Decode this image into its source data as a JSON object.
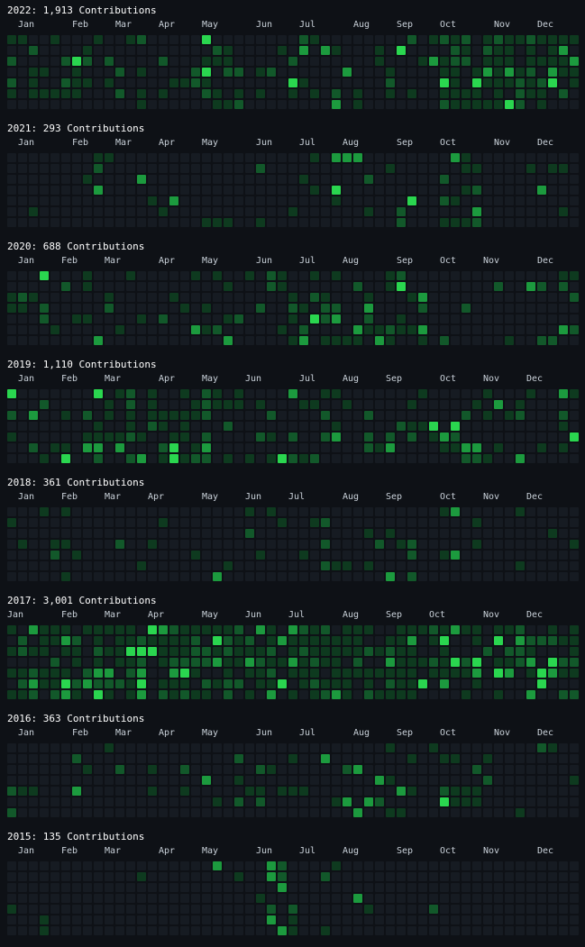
{
  "colors": {
    "background": "#0e1116",
    "empty": "#161b22",
    "level1": "#0e3a1f",
    "level2": "#12582a",
    "level3": "#1c9a3e",
    "level4": "#2ad64f"
  },
  "years": [
    {
      "title": "2022: 1,913 Contributions",
      "months": [
        {
          "label": "Jan",
          "week": 1
        },
        {
          "label": "Feb",
          "week": 6
        },
        {
          "label": "Mar",
          "week": 10
        },
        {
          "label": "Apr",
          "week": 14
        },
        {
          "label": "May",
          "week": 18
        },
        {
          "label": "Jun",
          "week": 23
        },
        {
          "label": "Jul",
          "week": 27
        },
        {
          "label": "Aug",
          "week": 32
        },
        {
          "label": "Sep",
          "week": 36
        },
        {
          "label": "Oct",
          "week": 40
        },
        {
          "label": "Nov",
          "week": 45
        },
        {
          "label": "Dec",
          "week": 49
        }
      ],
      "density": 0.3,
      "hotStart": 40,
      "hotEnd": 52,
      "hotBoost": 0.55,
      "seed": 11
    },
    {
      "title": "2021: 293 Contributions",
      "months": [
        {
          "label": "Jan",
          "week": 1
        },
        {
          "label": "Feb",
          "week": 6
        },
        {
          "label": "Mar",
          "week": 10
        },
        {
          "label": "Apr",
          "week": 14
        },
        {
          "label": "May",
          "week": 18
        },
        {
          "label": "Jun",
          "week": 23
        },
        {
          "label": "Jul",
          "week": 27
        },
        {
          "label": "Aug",
          "week": 31
        },
        {
          "label": "Sep",
          "week": 36
        },
        {
          "label": "Oct",
          "week": 40
        },
        {
          "label": "Nov",
          "week": 45
        },
        {
          "label": "Dec",
          "week": 49
        }
      ],
      "density": 0.07,
      "hotStart": 40,
      "hotEnd": 43,
      "hotBoost": 0.45,
      "seed": 23
    },
    {
      "title": "2020: 688 Contributions",
      "months": [
        {
          "label": "Jan",
          "week": 1
        },
        {
          "label": "Feb",
          "week": 5
        },
        {
          "label": "Mar",
          "week": 9
        },
        {
          "label": "Apr",
          "week": 14
        },
        {
          "label": "May",
          "week": 18
        },
        {
          "label": "Jun",
          "week": 23
        },
        {
          "label": "Jul",
          "week": 27
        },
        {
          "label": "Aug",
          "week": 31
        },
        {
          "label": "Sep",
          "week": 36
        },
        {
          "label": "Oct",
          "week": 40
        },
        {
          "label": "Nov",
          "week": 44
        },
        {
          "label": "Dec",
          "week": 49
        }
      ],
      "density": 0.18,
      "hotStart": 23,
      "hotEnd": 38,
      "hotBoost": 0.25,
      "seed": 37
    },
    {
      "title": "2019: 1,110 Contributions",
      "months": [
        {
          "label": "Jan",
          "week": 1
        },
        {
          "label": "Feb",
          "week": 5
        },
        {
          "label": "Mar",
          "week": 9
        },
        {
          "label": "Apr",
          "week": 14
        },
        {
          "label": "May",
          "week": 18
        },
        {
          "label": "Jun",
          "week": 22
        },
        {
          "label": "Jul",
          "week": 27
        },
        {
          "label": "Aug",
          "week": 31
        },
        {
          "label": "Sep",
          "week": 35
        },
        {
          "label": "Oct",
          "week": 40
        },
        {
          "label": "Nov",
          "week": 44
        },
        {
          "label": "Dec",
          "week": 48
        }
      ],
      "density": 0.26,
      "hotStart": 5,
      "hotEnd": 22,
      "hotBoost": 0.2,
      "seed": 41
    },
    {
      "title": "2018: 361 Contributions",
      "months": [
        {
          "label": "Jan",
          "week": 1
        },
        {
          "label": "Feb",
          "week": 5
        },
        {
          "label": "Mar",
          "week": 9
        },
        {
          "label": "Apr",
          "week": 13
        },
        {
          "label": "May",
          "week": 18
        },
        {
          "label": "Jun",
          "week": 22
        },
        {
          "label": "Jul",
          "week": 26
        },
        {
          "label": "Aug",
          "week": 31
        },
        {
          "label": "Sep",
          "week": 35
        },
        {
          "label": "Oct",
          "week": 40
        },
        {
          "label": "Nov",
          "week": 44
        },
        {
          "label": "Dec",
          "week": 48
        }
      ],
      "density": 0.1,
      "hotStart": 0,
      "hotEnd": 0,
      "hotBoost": 0,
      "seed": 53
    },
    {
      "title": "2017: 3,001 Contributions",
      "months": [
        {
          "label": "Jan",
          "week": 0
        },
        {
          "label": "Feb",
          "week": 5
        },
        {
          "label": "Mar",
          "week": 9
        },
        {
          "label": "Apr",
          "week": 13
        },
        {
          "label": "May",
          "week": 18
        },
        {
          "label": "Jun",
          "week": 22
        },
        {
          "label": "Jul",
          "week": 26
        },
        {
          "label": "Aug",
          "week": 31
        },
        {
          "label": "Sep",
          "week": 35
        },
        {
          "label": "Oct",
          "week": 39
        },
        {
          "label": "Nov",
          "week": 44
        },
        {
          "label": "Dec",
          "week": 48
        }
      ],
      "density": 0.55,
      "hotStart": 6,
      "hotEnd": 37,
      "hotBoost": 0.25,
      "seed": 67
    },
    {
      "title": "2016: 363 Contributions",
      "months": [
        {
          "label": "Jan",
          "week": 1
        },
        {
          "label": "Feb",
          "week": 6
        },
        {
          "label": "Mar",
          "week": 10
        },
        {
          "label": "Apr",
          "week": 14
        },
        {
          "label": "May",
          "week": 18
        },
        {
          "label": "Jun",
          "week": 23
        },
        {
          "label": "Jul",
          "week": 27
        },
        {
          "label": "Aug",
          "week": 32
        },
        {
          "label": "Sep",
          "week": 36
        },
        {
          "label": "Oct",
          "week": 40
        },
        {
          "label": "Nov",
          "week": 45
        },
        {
          "label": "Dec",
          "week": 49
        }
      ],
      "density": 0.09,
      "hotStart": 20,
      "hotEnd": 44,
      "hotBoost": 0.12,
      "seed": 79
    },
    {
      "title": "2015: 135 Contributions",
      "months": [
        {
          "label": "Jan",
          "week": 1
        },
        {
          "label": "Feb",
          "week": 5
        },
        {
          "label": "Mar",
          "week": 9
        },
        {
          "label": "Apr",
          "week": 14
        },
        {
          "label": "May",
          "week": 18
        },
        {
          "label": "Jun",
          "week": 23
        },
        {
          "label": "Jul",
          "week": 27
        },
        {
          "label": "Aug",
          "week": 31
        },
        {
          "label": "Sep",
          "week": 36
        },
        {
          "label": "Oct",
          "week": 40
        },
        {
          "label": "Nov",
          "week": 44
        },
        {
          "label": "Dec",
          "week": 49
        }
      ],
      "density": 0.04,
      "hotStart": 24,
      "hotEnd": 26,
      "hotBoost": 0.3,
      "seed": 97
    }
  ]
}
